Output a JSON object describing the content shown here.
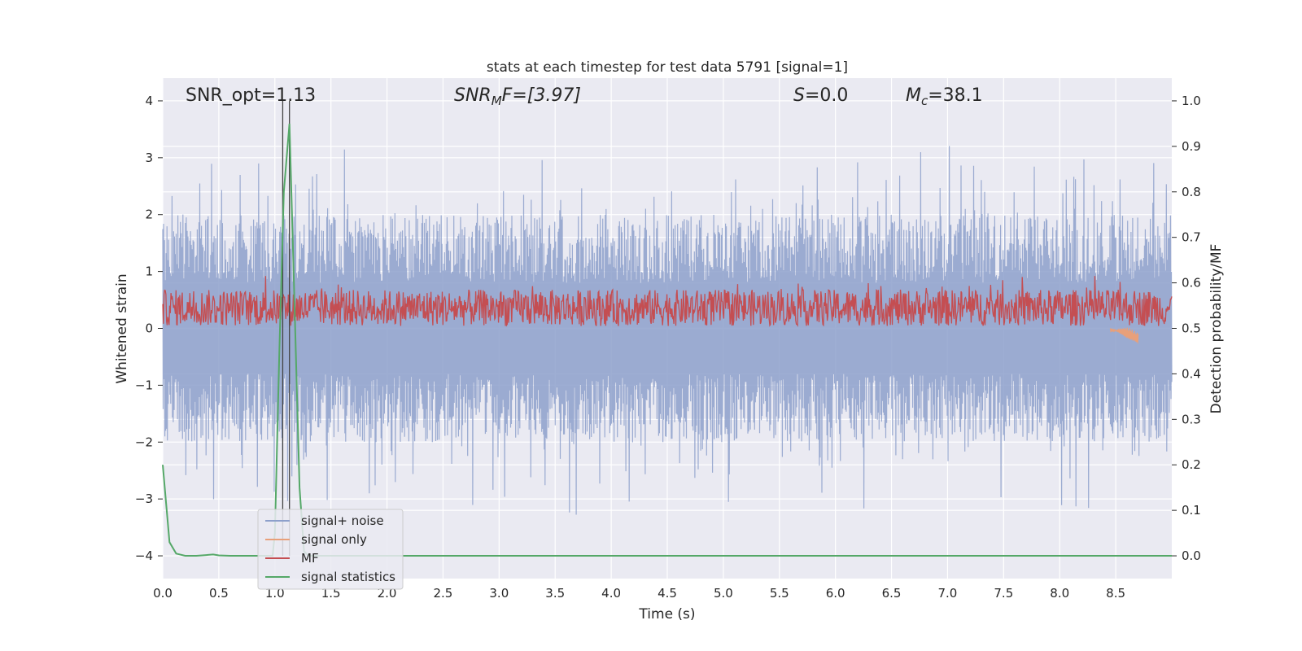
{
  "chart_data": {
    "type": "line",
    "title": "stats at each timestep for test data 5791 [signal=1]",
    "xlabel": "Time (s)",
    "ylabel_left": "Whitened strain",
    "ylabel_right": "Detection probability/MF",
    "xlim": [
      0,
      9.0
    ],
    "ylim_left": [
      -4.4,
      4.4
    ],
    "ylim_right": [
      -0.05,
      1.05
    ],
    "x_ticks": [
      "0.0",
      "0.5",
      "1.0",
      "1.5",
      "2.0",
      "2.5",
      "3.0",
      "3.5",
      "4.0",
      "4.5",
      "5.0",
      "5.5",
      "6.0",
      "6.5",
      "7.0",
      "7.5",
      "8.0",
      "8.5"
    ],
    "y_ticks_left": [
      "4",
      "3",
      "2",
      "1",
      "0",
      "−1",
      "−2",
      "−3",
      "−4"
    ],
    "y_ticks_right": [
      "1.0",
      "0.9",
      "0.8",
      "0.7",
      "0.6",
      "0.5",
      "0.4",
      "0.3",
      "0.2",
      "0.1",
      "0.0"
    ],
    "grid": true,
    "legend_position": "lower-left",
    "annotations": {
      "snr_opt": "SNR_opt=1.13",
      "snr_mf": "SNR",
      "snr_mf_sub": "M",
      "snr_mf_rest": "F=[3.97]",
      "s": "S",
      "s_rest": "=0.0",
      "mc": "M",
      "mc_sub": "c",
      "mc_rest": "=38.1"
    },
    "vertical_markers": [
      1.07,
      1.13
    ],
    "series": [
      {
        "name": "signal+ noise",
        "color": "#8da0cb",
        "axis": "left",
        "approx_range": [
          -3.8,
          3.7
        ]
      },
      {
        "name": "signal only",
        "color": "#e8a07a",
        "axis": "left",
        "approx_range": [
          -0.3,
          0.05
        ]
      },
      {
        "name": "MF",
        "color": "#c44e52",
        "axis": "right",
        "approx_range": [
          0.5,
          0.62
        ]
      },
      {
        "name": "signal statistics",
        "color": "#55a868",
        "axis": "right",
        "points": [
          [
            0.0,
            0.2
          ],
          [
            0.06,
            0.03
          ],
          [
            0.12,
            0.005
          ],
          [
            0.2,
            0.0
          ],
          [
            0.3,
            0.0
          ],
          [
            0.45,
            0.003
          ],
          [
            0.5,
            0.001
          ],
          [
            0.6,
            0.0
          ],
          [
            0.98,
            0.0
          ],
          [
            1.0,
            0.05
          ],
          [
            1.04,
            0.45
          ],
          [
            1.08,
            0.8
          ],
          [
            1.13,
            0.95
          ],
          [
            1.17,
            0.6
          ],
          [
            1.22,
            0.15
          ],
          [
            1.26,
            0.01
          ],
          [
            1.3,
            0.0
          ],
          [
            9.0,
            0.0
          ]
        ]
      }
    ],
    "colors": {
      "background": "#eaeaf2",
      "grid": "#ffffff"
    }
  }
}
